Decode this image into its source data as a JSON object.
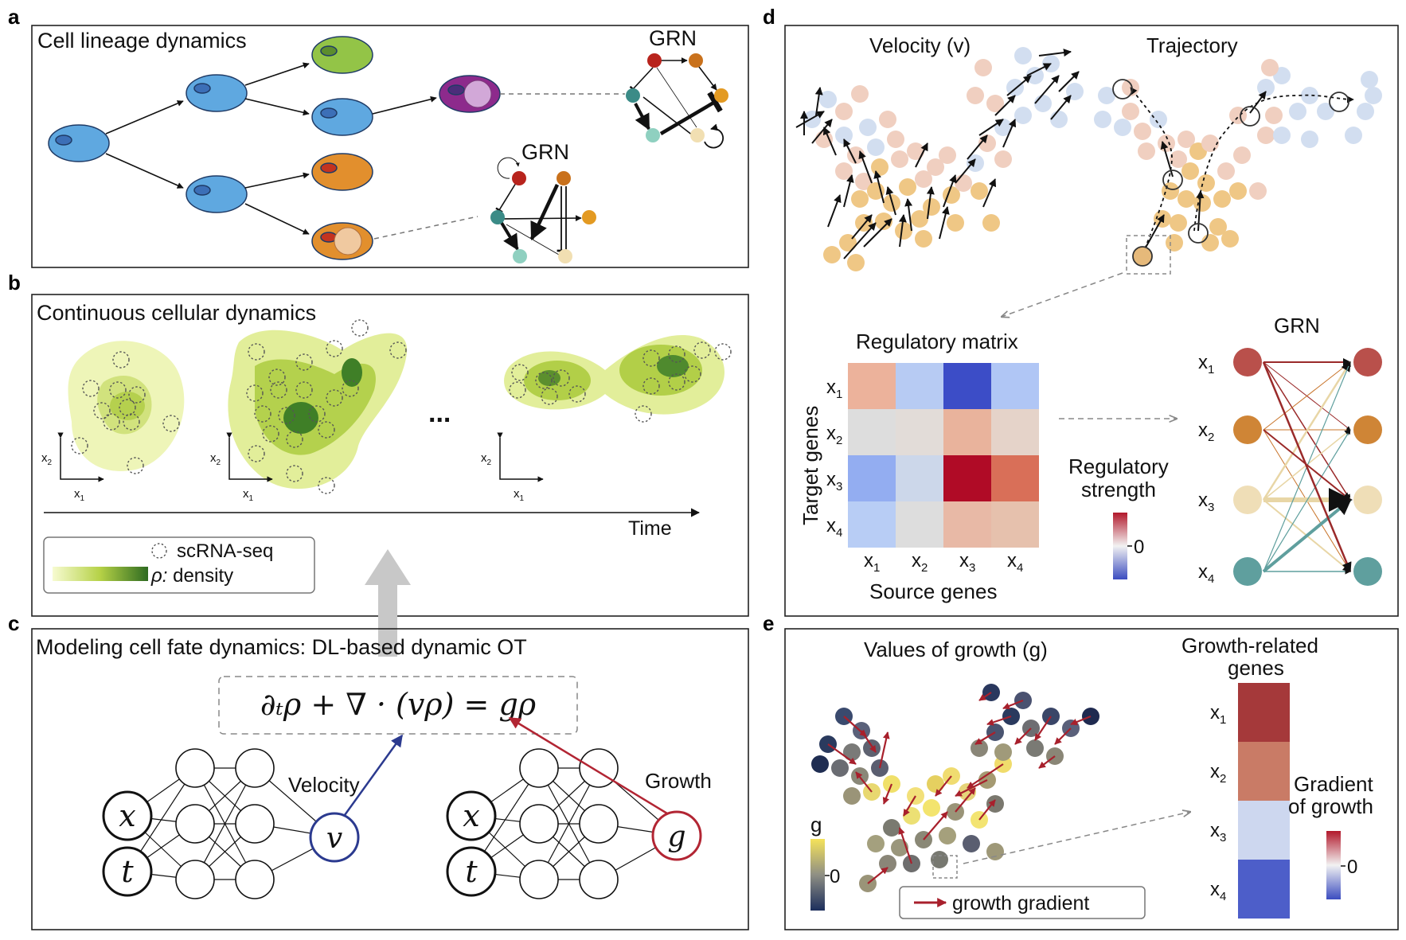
{
  "panels": {
    "a": {
      "label": "a",
      "title": "Cell lineage dynamics",
      "grn_top": "GRN",
      "grn_bottom": "GRN"
    },
    "b": {
      "label": "b",
      "title": "Continuous cellular dynamics",
      "ellipsis": "...",
      "axis_x": "x",
      "axis_y": "x",
      "sub_x": "1",
      "sub_y": "2",
      "time_label": "Time",
      "legend_scrna": "scRNA-seq",
      "legend_density_symbol": "ρ:",
      "legend_density": "density"
    },
    "c": {
      "label": "c",
      "title": "Modeling cell fate dynamics: DL-based dynamic OT",
      "equation": "∂ₜρ + ∇ · (vρ) = gρ",
      "velocity_label": "Velocity",
      "growth_label": "Growth",
      "input_x": "x",
      "input_t": "t",
      "output_v": "v",
      "output_g": "g"
    },
    "d": {
      "label": "d",
      "velocity_title": "Velocity (v)",
      "trajectory_title": "Trajectory",
      "matrix_title": "Regulatory matrix",
      "target_genes": "Target genes",
      "source_genes": "Source genes",
      "grn_title": "GRN",
      "strength_line1": "Regulatory",
      "strength_line2": "strength",
      "colorbar_zero": "0",
      "gene_letter": "x",
      "gene_subs": [
        "1",
        "2",
        "3",
        "4"
      ],
      "matrix": [
        [
          "#ecb29b",
          "#b7cbf3",
          "#3c4dc7",
          "#b0c6f5"
        ],
        [
          "#dddddd",
          "#e2dcd8",
          "#e9b39c",
          "#e5d3c9"
        ],
        [
          "#93adf1",
          "#ccd7ea",
          "#b00b26",
          "#d96f58"
        ],
        [
          "#b8cdf5",
          "#dddddd",
          "#e8b9a6",
          "#e6c1ad"
        ]
      ],
      "node_colors": [
        "#b9504b",
        "#cf8536",
        "#efdeb7",
        "#5f9f9e"
      ]
    },
    "e": {
      "label": "e",
      "title": "Values of growth (g)",
      "growth_genes_line1": "Growth-related",
      "growth_genes_line2": "genes",
      "colorbar_label": "g",
      "colorbar_zero": "0",
      "legend_arrow": "growth gradient",
      "gradient_line1": "Gradient",
      "gradient_line2": "of growth",
      "gradient_zero": "0",
      "gene_letter": "x",
      "gene_subs": [
        "1",
        "2",
        "3",
        "4"
      ],
      "bar_colors": [
        "#a5393a",
        "#c97b66",
        "#cdd7ef",
        "#4d5ec9"
      ]
    }
  },
  "colors": {
    "cell_blue": "#5fa8e0",
    "cell_green": "#93c447",
    "cell_orange": "#e28f2d",
    "cell_purple": "#8d2a8c",
    "velocity_arrow": "#2b3a8f",
    "growth_arrow": "#b22533",
    "gradient_arrow": "#a8202c"
  }
}
